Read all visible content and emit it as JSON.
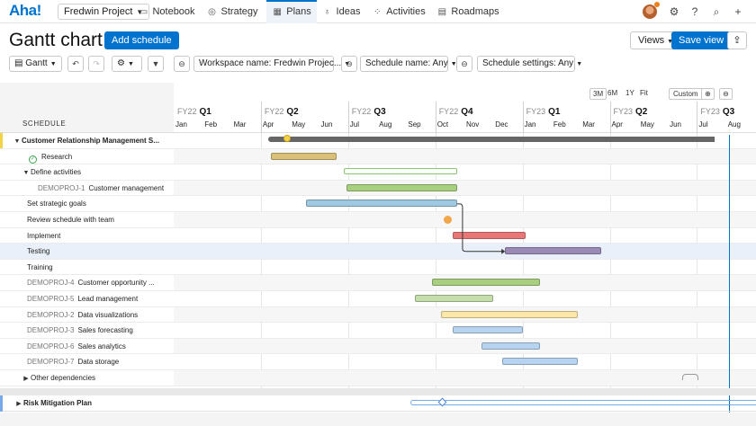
{
  "nav": {
    "logo": "Aha!",
    "project": "Fredwin Project",
    "tabs": [
      {
        "label": "Notebook",
        "icon": "notebook-icon",
        "glyph": "▭"
      },
      {
        "label": "Strategy",
        "icon": "strategy-icon",
        "glyph": "◎"
      },
      {
        "label": "Plans",
        "icon": "plans-icon",
        "glyph": "▦"
      },
      {
        "label": "Ideas",
        "icon": "ideas-icon",
        "glyph": "♁"
      },
      {
        "label": "Activities",
        "icon": "activities-icon",
        "glyph": "⁘"
      },
      {
        "label": "Roadmaps",
        "icon": "roadmaps-icon",
        "glyph": "▤"
      }
    ],
    "active_tab": "Plans"
  },
  "header": {
    "title": "Gantt chart",
    "add_button": "Add schedule",
    "views_button": "Views",
    "save_view_button": "Save view"
  },
  "toolbar": {
    "view_select": "Gantt",
    "filters": [
      "Workspace name: Fredwin Projec...",
      "Schedule name: Any",
      "Schedule settings: Any"
    ]
  },
  "timeline": {
    "zoom_options": [
      "3M",
      "6M",
      "1Y",
      "Fit"
    ],
    "zoom_selected": "Custom",
    "quarters": [
      {
        "fy": "FY22",
        "q": "Q1"
      },
      {
        "fy": "FY22",
        "q": "Q2"
      },
      {
        "fy": "FY22",
        "q": "Q3"
      },
      {
        "fy": "FY22",
        "q": "Q4"
      },
      {
        "fy": "FY23",
        "q": "Q1"
      },
      {
        "fy": "FY23",
        "q": "Q2"
      },
      {
        "fy": "FY23",
        "q": "Q3"
      }
    ],
    "months": [
      "Jan",
      "Feb",
      "Mar",
      "Apr",
      "May",
      "Jun",
      "Jul",
      "Aug",
      "Sep",
      "Oct",
      "Nov",
      "Dec",
      "Jan",
      "Feb",
      "Mar",
      "Apr",
      "May",
      "Jun",
      "Jul",
      "Aug"
    ]
  },
  "schedule": {
    "header": "SCHEDULE",
    "rows": [
      {
        "key": "",
        "label": "Customer Relationship Management S...",
        "type": "group",
        "indent": 0
      },
      {
        "key": "",
        "label": "Research",
        "type": "done",
        "indent": 1,
        "bar": {
          "start": 3.35,
          "end": 5.6,
          "color": "#d8c078"
        }
      },
      {
        "key": "",
        "label": "Define activities",
        "type": "subgroup",
        "indent": 1,
        "bar": {
          "start": 5.85,
          "end": 9.75,
          "color": "#ffffff",
          "outline": "#8bc56e"
        }
      },
      {
        "key": "DEMOPROJ-1",
        "label": "Customer management",
        "type": "item",
        "indent": 2,
        "bar": {
          "start": 5.95,
          "end": 9.75,
          "color": "#a8cf7f"
        }
      },
      {
        "key": "",
        "label": "Set strategic goals",
        "type": "item",
        "indent": 1,
        "bar": {
          "start": 4.55,
          "end": 9.75,
          "color": "#9ec9e0"
        }
      },
      {
        "key": "",
        "label": "Review schedule with team",
        "type": "item",
        "indent": 1,
        "milestone": {
          "at": 9.4,
          "color": "#f3a648"
        }
      },
      {
        "key": "",
        "label": "Implement",
        "type": "item",
        "indent": 1,
        "bar": {
          "start": 9.6,
          "end": 12.1,
          "color": "#e87878"
        }
      },
      {
        "key": "",
        "label": "Testing",
        "type": "item",
        "indent": 1,
        "selected": true,
        "bar": {
          "start": 11.4,
          "end": 14.7,
          "color": "#9a8ab5"
        }
      },
      {
        "key": "",
        "label": "Training",
        "type": "item",
        "indent": 1
      },
      {
        "key": "DEMOPROJ-4",
        "label": "Customer opportunity ...",
        "type": "item",
        "indent": 1,
        "bar": {
          "start": 8.9,
          "end": 12.6,
          "color": "#a8cf7f"
        }
      },
      {
        "key": "DEMOPROJ-5",
        "label": "Lead management",
        "type": "item",
        "indent": 1,
        "bar": {
          "start": 8.3,
          "end": 11.0,
          "color": "#c4ddab"
        }
      },
      {
        "key": "DEMOPROJ-2",
        "label": "Data visualizations",
        "type": "item",
        "indent": 1,
        "bar": {
          "start": 9.2,
          "end": 13.9,
          "color": "#fbe8a8"
        }
      },
      {
        "key": "DEMOPROJ-3",
        "label": "Sales forecasting",
        "type": "item",
        "indent": 1,
        "bar": {
          "start": 9.6,
          "end": 12.0,
          "color": "#b6d3ef"
        }
      },
      {
        "key": "DEMOPROJ-6",
        "label": "Sales analytics",
        "type": "item",
        "indent": 1,
        "bar": {
          "start": 10.6,
          "end": 12.6,
          "color": "#b6d3ef"
        }
      },
      {
        "key": "DEMOPROJ-7",
        "label": "Data storage",
        "type": "item",
        "indent": 1,
        "bar": {
          "start": 11.3,
          "end": 13.9,
          "color": "#b6d3ef"
        }
      },
      {
        "key": "",
        "label": "Other dependencies",
        "type": "subgroup-collapsed",
        "indent": 1
      }
    ],
    "risk_plan": "Risk Mitigation Plan"
  },
  "colors": {
    "accent": "#0073cf"
  }
}
